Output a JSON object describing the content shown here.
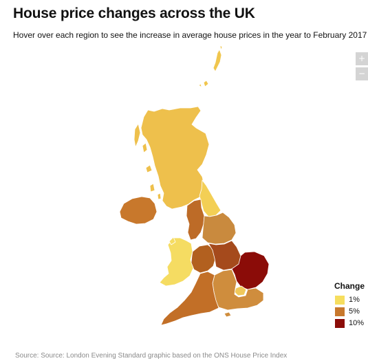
{
  "header": {
    "title": "House price changes across the UK",
    "subtitle": "Hover over each region to see the increase in average house prices in the year to February 2017"
  },
  "zoom": {
    "zoom_in": "+",
    "zoom_out": "−"
  },
  "legend": {
    "title": "Change",
    "items": [
      {
        "label": "1%",
        "color": "#f6de5e"
      },
      {
        "label": "5%",
        "color": "#c8782c"
      },
      {
        "label": "10%",
        "color": "#8b0c08"
      }
    ]
  },
  "colors": {
    "scale_low": "#f6de5e",
    "scale_mid": "#c8782c",
    "scale_high": "#8b0c08"
  },
  "source": "Source: Source: London Evening Standard graphic based on the ONS House Price Index"
}
